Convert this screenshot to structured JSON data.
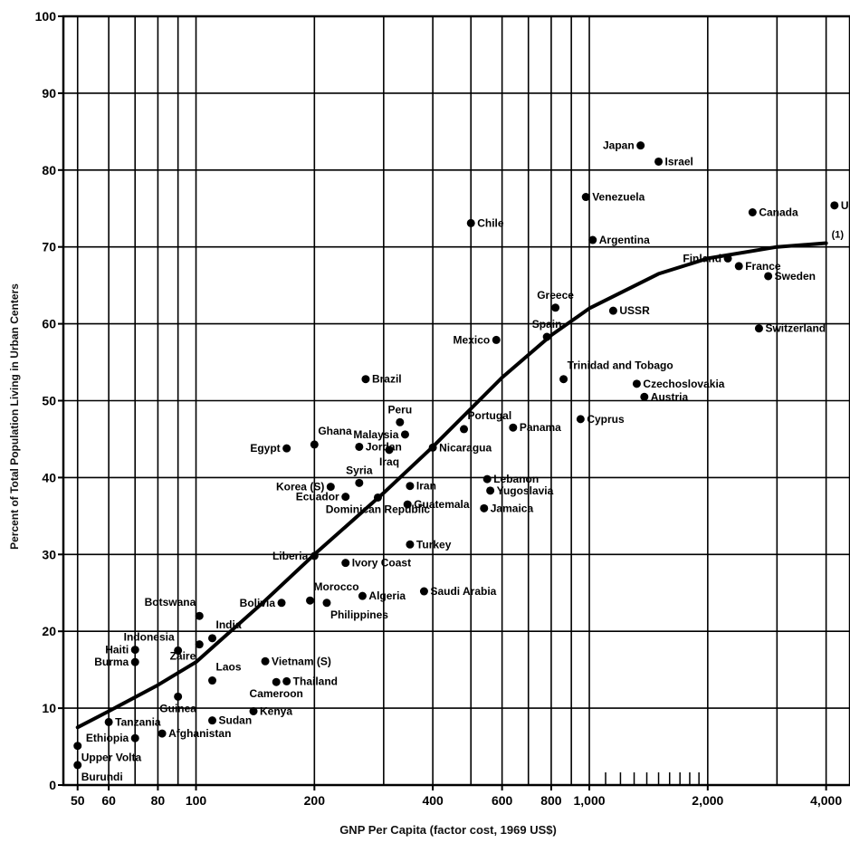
{
  "chart_data": {
    "type": "scatter",
    "title": "",
    "xlabel": "GNP Per Capita (factor cost, 1969 US$)",
    "ylabel": "Percent of Total Population Living in Urban Centers",
    "xscale": "log",
    "xlim": [
      46,
      4600
    ],
    "ylim": [
      0,
      100
    ],
    "grid": true,
    "x_ticks": [
      50,
      60,
      80,
      100,
      200,
      400,
      600,
      800,
      1000,
      2000,
      4000
    ],
    "x_tick_labels": [
      "50",
      "60",
      "80",
      "100",
      "200",
      "400",
      "600",
      "800",
      "1,000",
      "2,000",
      "4,000"
    ],
    "y_ticks": [
      0,
      10,
      20,
      30,
      40,
      50,
      60,
      70,
      80,
      90,
      100
    ],
    "y_tick_labels": [
      "0",
      "10",
      "20",
      "30",
      "40",
      "50",
      "60",
      "70",
      "80",
      "90",
      "100"
    ],
    "curve_label": "(1)",
    "curve": {
      "x": [
        50,
        60,
        80,
        100,
        150,
        200,
        300,
        400,
        600,
        800,
        1000,
        1500,
        2000,
        3000,
        4000
      ],
      "y": [
        7.5,
        9.6,
        13,
        16,
        24,
        30,
        38,
        44,
        53,
        58.5,
        62,
        66.5,
        68.5,
        70,
        70.5
      ]
    },
    "points": [
      {
        "label": "Japan",
        "x": 1350,
        "y": 83.2,
        "pos": "left"
      },
      {
        "label": "Israel",
        "x": 1500,
        "y": 81.1,
        "pos": "right"
      },
      {
        "label": "Venezuela",
        "x": 980,
        "y": 76.5,
        "pos": "right"
      },
      {
        "label": "USA",
        "x": 4200,
        "y": 75.4,
        "pos": "right"
      },
      {
        "label": "Canada",
        "x": 2600,
        "y": 74.5,
        "pos": "right"
      },
      {
        "label": "Chile",
        "x": 500,
        "y": 73.1,
        "pos": "right"
      },
      {
        "label": "Argentina",
        "x": 1020,
        "y": 70.9,
        "pos": "right"
      },
      {
        "label": "Finland",
        "x": 2250,
        "y": 68.5,
        "pos": "left"
      },
      {
        "label": "France",
        "x": 2400,
        "y": 67.5,
        "pos": "right"
      },
      {
        "label": "Sweden",
        "x": 2850,
        "y": 66.2,
        "pos": "right"
      },
      {
        "label": "Greece",
        "x": 820,
        "y": 62.1,
        "pos": "above"
      },
      {
        "label": "USSR",
        "x": 1150,
        "y": 61.7,
        "pos": "right"
      },
      {
        "label": "Switzerland",
        "x": 2700,
        "y": 59.4,
        "pos": "right"
      },
      {
        "label": "Spain",
        "x": 780,
        "y": 58.3,
        "pos": "above"
      },
      {
        "label": "Mexico",
        "x": 580,
        "y": 57.9,
        "pos": "left"
      },
      {
        "label": "Trinidad and Tobago",
        "x": 860,
        "y": 52.8,
        "pos": "above-right"
      },
      {
        "label": "Brazil",
        "x": 270,
        "y": 52.8,
        "pos": "right"
      },
      {
        "label": "Czechoslovakia",
        "x": 1320,
        "y": 52.2,
        "pos": "right"
      },
      {
        "label": "Austria",
        "x": 1380,
        "y": 50.5,
        "pos": "right"
      },
      {
        "label": "Cyprus",
        "x": 950,
        "y": 47.6,
        "pos": "right"
      },
      {
        "label": "Peru",
        "x": 330,
        "y": 47.2,
        "pos": "above"
      },
      {
        "label": "Portugal",
        "x": 480,
        "y": 46.3,
        "pos": "above-right"
      },
      {
        "label": "Panama",
        "x": 640,
        "y": 46.5,
        "pos": "right"
      },
      {
        "label": "Malaysia",
        "x": 340,
        "y": 45.6,
        "pos": "left"
      },
      {
        "label": "Ghana",
        "x": 200,
        "y": 44.3,
        "pos": "above-right"
      },
      {
        "label": "Egypt",
        "x": 170,
        "y": 43.8,
        "pos": "left"
      },
      {
        "label": "Jordan",
        "x": 260,
        "y": 44.0,
        "pos": "right"
      },
      {
        "label": "Iraq",
        "x": 310,
        "y": 43.6,
        "pos": "below"
      },
      {
        "label": "Nicaragua",
        "x": 400,
        "y": 43.9,
        "pos": "right"
      },
      {
        "label": "Syria",
        "x": 260,
        "y": 39.3,
        "pos": "above"
      },
      {
        "label": "Lebanon",
        "x": 550,
        "y": 39.8,
        "pos": "right"
      },
      {
        "label": "Korea (S)",
        "x": 220,
        "y": 38.8,
        "pos": "left"
      },
      {
        "label": "Iran",
        "x": 350,
        "y": 38.9,
        "pos": "right"
      },
      {
        "label": "Yugoslavia",
        "x": 560,
        "y": 38.3,
        "pos": "right"
      },
      {
        "label": "Ecuador",
        "x": 240,
        "y": 37.5,
        "pos": "left"
      },
      {
        "label": "Guatemala",
        "x": 345,
        "y": 36.5,
        "pos": "right"
      },
      {
        "label": "Dominican Republic",
        "x": 290,
        "y": 37.4,
        "pos": "below"
      },
      {
        "label": "Jamaica",
        "x": 540,
        "y": 36.0,
        "pos": "right"
      },
      {
        "label": "Turkey",
        "x": 350,
        "y": 31.3,
        "pos": "right"
      },
      {
        "label": "Liberia",
        "x": 200,
        "y": 29.8,
        "pos": "left"
      },
      {
        "label": "Ivory Coast",
        "x": 240,
        "y": 28.9,
        "pos": "right"
      },
      {
        "label": "Saudi Arabia",
        "x": 380,
        "y": 25.2,
        "pos": "right"
      },
      {
        "label": "Algeria",
        "x": 265,
        "y": 24.6,
        "pos": "right"
      },
      {
        "label": "Morocco",
        "x": 195,
        "y": 24.0,
        "pos": "above-right"
      },
      {
        "label": "Bolivia",
        "x": 165,
        "y": 23.7,
        "pos": "left"
      },
      {
        "label": "Philippines",
        "x": 215,
        "y": 23.7,
        "pos": "below-right"
      },
      {
        "label": "Botswana",
        "x": 102,
        "y": 22.0,
        "pos": "above-left"
      },
      {
        "label": "India",
        "x": 110,
        "y": 19.1,
        "pos": "above-right"
      },
      {
        "label": "Indonesia",
        "x": 90,
        "y": 17.5,
        "pos": "above-left"
      },
      {
        "label": "Haiti",
        "x": 70,
        "y": 17.6,
        "pos": "left"
      },
      {
        "label": "Zaire",
        "x": 102,
        "y": 18.3,
        "pos": "below-left"
      },
      {
        "label": "Vietnam (S)",
        "x": 150,
        "y": 16.1,
        "pos": "right"
      },
      {
        "label": "Burma",
        "x": 70,
        "y": 16.0,
        "pos": "left"
      },
      {
        "label": "Laos",
        "x": 110,
        "y": 13.6,
        "pos": "above-right"
      },
      {
        "label": "Thailand",
        "x": 170,
        "y": 13.5,
        "pos": "right"
      },
      {
        "label": "Cameroon",
        "x": 160,
        "y": 13.4,
        "pos": "below"
      },
      {
        "label": "Guinea",
        "x": 90,
        "y": 11.5,
        "pos": "below"
      },
      {
        "label": "Kenya",
        "x": 140,
        "y": 9.6,
        "pos": "right"
      },
      {
        "label": "Sudan",
        "x": 110,
        "y": 8.4,
        "pos": "right"
      },
      {
        "label": "Tanzania",
        "x": 60,
        "y": 8.2,
        "pos": "right"
      },
      {
        "label": "Ethiopia",
        "x": 70,
        "y": 6.1,
        "pos": "left"
      },
      {
        "label": "Afghanistan",
        "x": 82,
        "y": 6.7,
        "pos": "right"
      },
      {
        "label": "Upper Volta",
        "x": 50,
        "y": 5.1,
        "pos": "below-right"
      },
      {
        "label": "Burundi",
        "x": 50,
        "y": 2.6,
        "pos": "below-right"
      }
    ]
  }
}
